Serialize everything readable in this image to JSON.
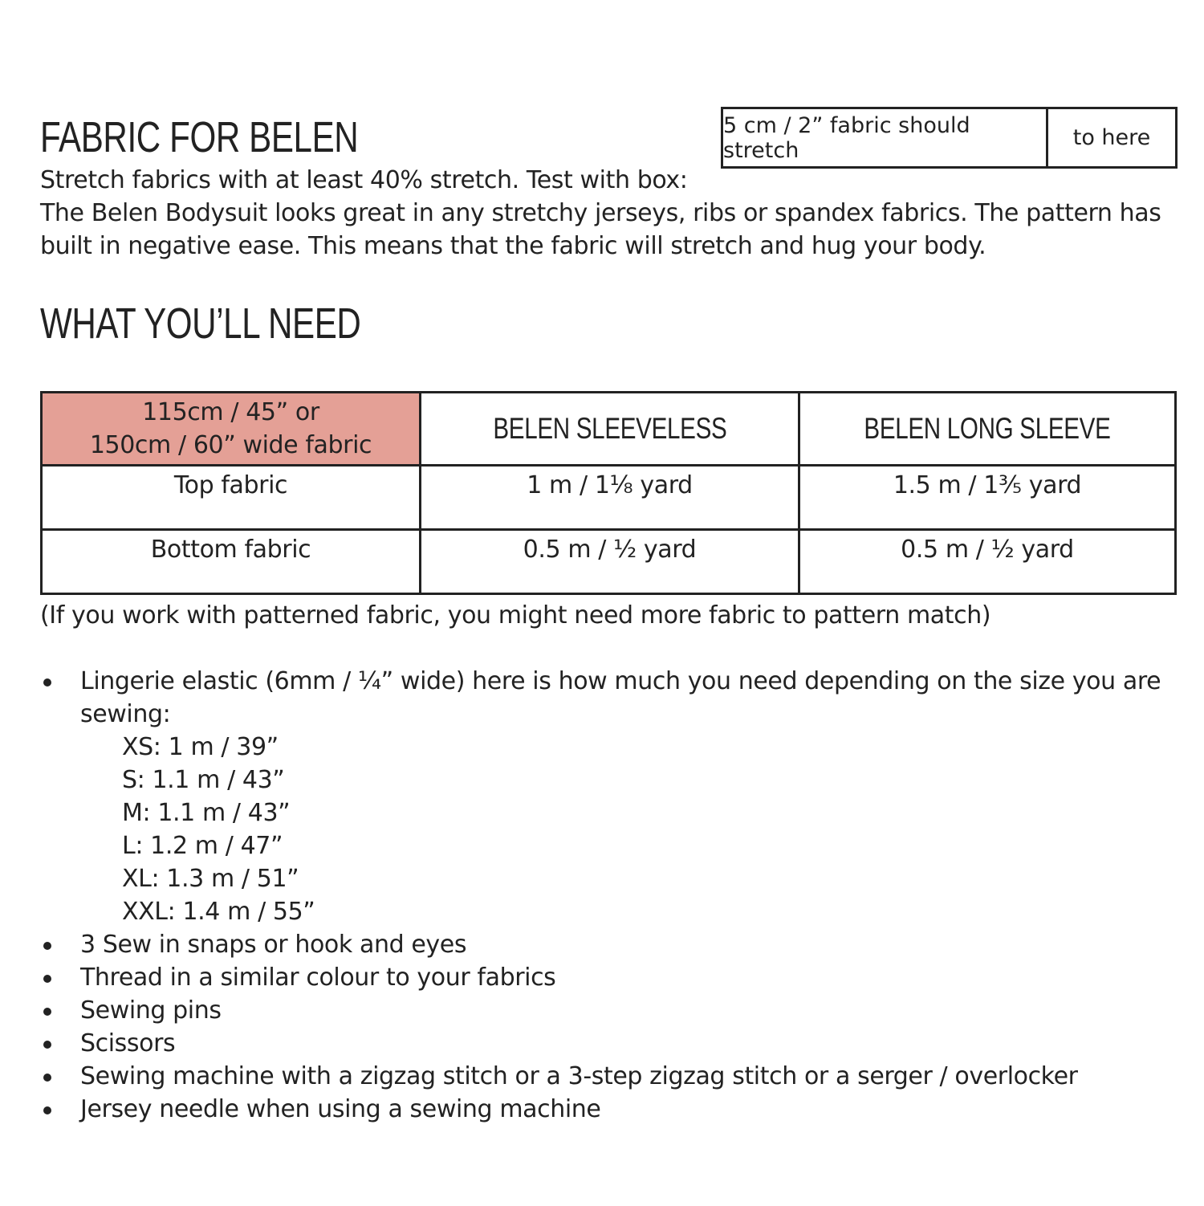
{
  "fabric_section": {
    "title": "FABRIC FOR BELEN",
    "stretch_line": "Stretch fabrics with at least 40% stretch. Test with box:",
    "description_line1": "The Belen Bodysuit looks great in any stretchy jerseys, ribs or spandex fabrics. The pattern has",
    "description_line2": "built in negative ease. This means that the fabric will stretch and hug your body.",
    "stretch_box": {
      "left_label": "5 cm / 2” fabric should stretch",
      "right_label": "to here"
    }
  },
  "needs_section": {
    "title": "WHAT YOU’LL NEED",
    "table": {
      "header_color": "#e4a096",
      "headers": [
        "115cm / 45” or",
        "150cm / 60” wide fabric",
        "BELEN SLEEVELESS",
        "BELEN LONG SLEEVE"
      ],
      "rows": [
        {
          "label": "Top fabric",
          "sleeveless": "1 m / 1⅛ yard",
          "long_sleeve": "1.5 m / 1⅗ yard"
        },
        {
          "label": "Bottom fabric",
          "sleeveless": "0.5 m / ½ yard",
          "long_sleeve": "0.5 m / ½ yard"
        }
      ]
    },
    "note": "(If you work with patterned fabric, you might need more fabric to pattern match)",
    "elastic": {
      "line1": "Lingerie elastic (6mm / ¼” wide) here is how much you need depending on the size you are",
      "line2": "sewing:",
      "sizes": [
        "XS: 1 m / 39”",
        "S: 1.1 m / 43”",
        "M: 1.1 m / 43”",
        "L: 1.2 m / 47”",
        "XL: 1.3 m / 51”",
        "XXL: 1.4 m / 55”"
      ]
    },
    "items": [
      "3 Sew in snaps or hook and eyes",
      "Thread in a similar colour to your fabrics",
      "Sewing pins",
      "Scissors",
      "Sewing machine with a zigzag stitch or a 3-step zigzag stitch or a serger / overlocker",
      "Jersey needle when using a sewing machine"
    ]
  }
}
